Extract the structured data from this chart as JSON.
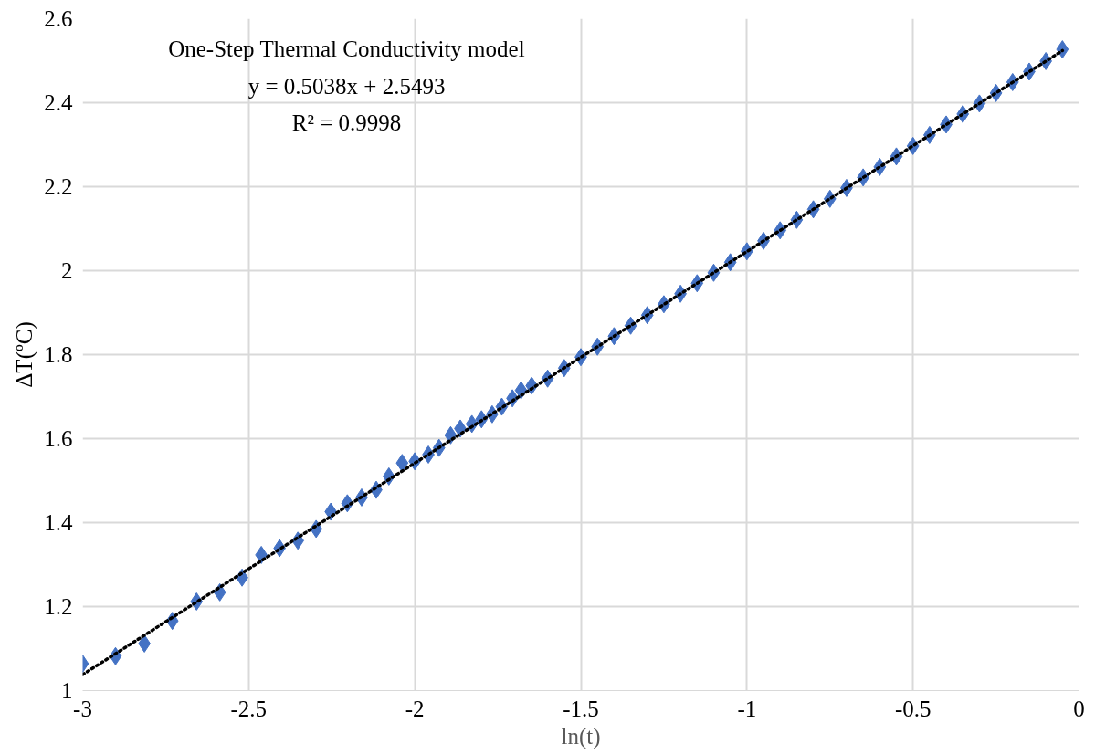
{
  "chart_data": {
    "type": "scatter",
    "xlabel": "ln(t)",
    "ylabel": "ΔT(ºC)",
    "annotations": [
      "One-Step Thermal Conductivity model",
      "y = 0.5038x + 2.5493",
      "R² = 0.9998"
    ],
    "xlim": [
      -3,
      0
    ],
    "ylim": [
      1,
      2.6
    ],
    "xticks": [
      -3,
      -2.5,
      -2,
      -1.5,
      -1,
      -0.5,
      0
    ],
    "yticks": [
      1,
      1.2,
      1.4,
      1.6,
      1.8,
      2,
      2.2,
      2.4,
      2.6
    ],
    "grid": true,
    "series": [
      {
        "color": "#4472c4",
        "marker": "diamond",
        "x": [
          -3.0,
          -2.901,
          -2.814,
          -2.73,
          -2.657,
          -2.587,
          -2.52,
          -2.462,
          -2.407,
          -2.352,
          -2.297,
          -2.253,
          -2.203,
          -2.16,
          -2.116,
          -2.078,
          -2.038,
          -2.0,
          -1.959,
          -1.927,
          -1.892,
          -1.863,
          -1.828,
          -1.799,
          -1.767,
          -1.738,
          -1.706,
          -1.68,
          -1.648,
          -1.6,
          -1.55,
          -1.5,
          -1.45,
          -1.4,
          -1.35,
          -1.3,
          -1.25,
          -1.2,
          -1.15,
          -1.1,
          -1.05,
          -1.0,
          -0.95,
          -0.9,
          -0.85,
          -0.8,
          -0.75,
          -0.7,
          -0.65,
          -0.6,
          -0.55,
          -0.5,
          -0.45,
          -0.4,
          -0.35,
          -0.3,
          -0.25,
          -0.2,
          -0.15,
          -0.1,
          -0.05
        ],
        "values": [
          1.064,
          1.082,
          1.112,
          1.166,
          1.212,
          1.234,
          1.269,
          1.323,
          1.339,
          1.357,
          1.385,
          1.426,
          1.446,
          1.46,
          1.478,
          1.51,
          1.542,
          1.546,
          1.562,
          1.578,
          1.608,
          1.624,
          1.635,
          1.646,
          1.658,
          1.676,
          1.696,
          1.715,
          1.726,
          1.743,
          1.768,
          1.794,
          1.819,
          1.844,
          1.869,
          1.894,
          1.92,
          1.945,
          1.97,
          1.995,
          2.02,
          2.046,
          2.071,
          2.096,
          2.121,
          2.146,
          2.171,
          2.197,
          2.222,
          2.247,
          2.272,
          2.297,
          2.323,
          2.348,
          2.373,
          2.398,
          2.423,
          2.449,
          2.474,
          2.499,
          2.527
        ]
      },
      {
        "type": "line",
        "color": "#000000",
        "line_style": "dotted",
        "x": [
          -3.0,
          -0.05
        ],
        "values": [
          1.038,
          2.524
        ]
      }
    ]
  }
}
